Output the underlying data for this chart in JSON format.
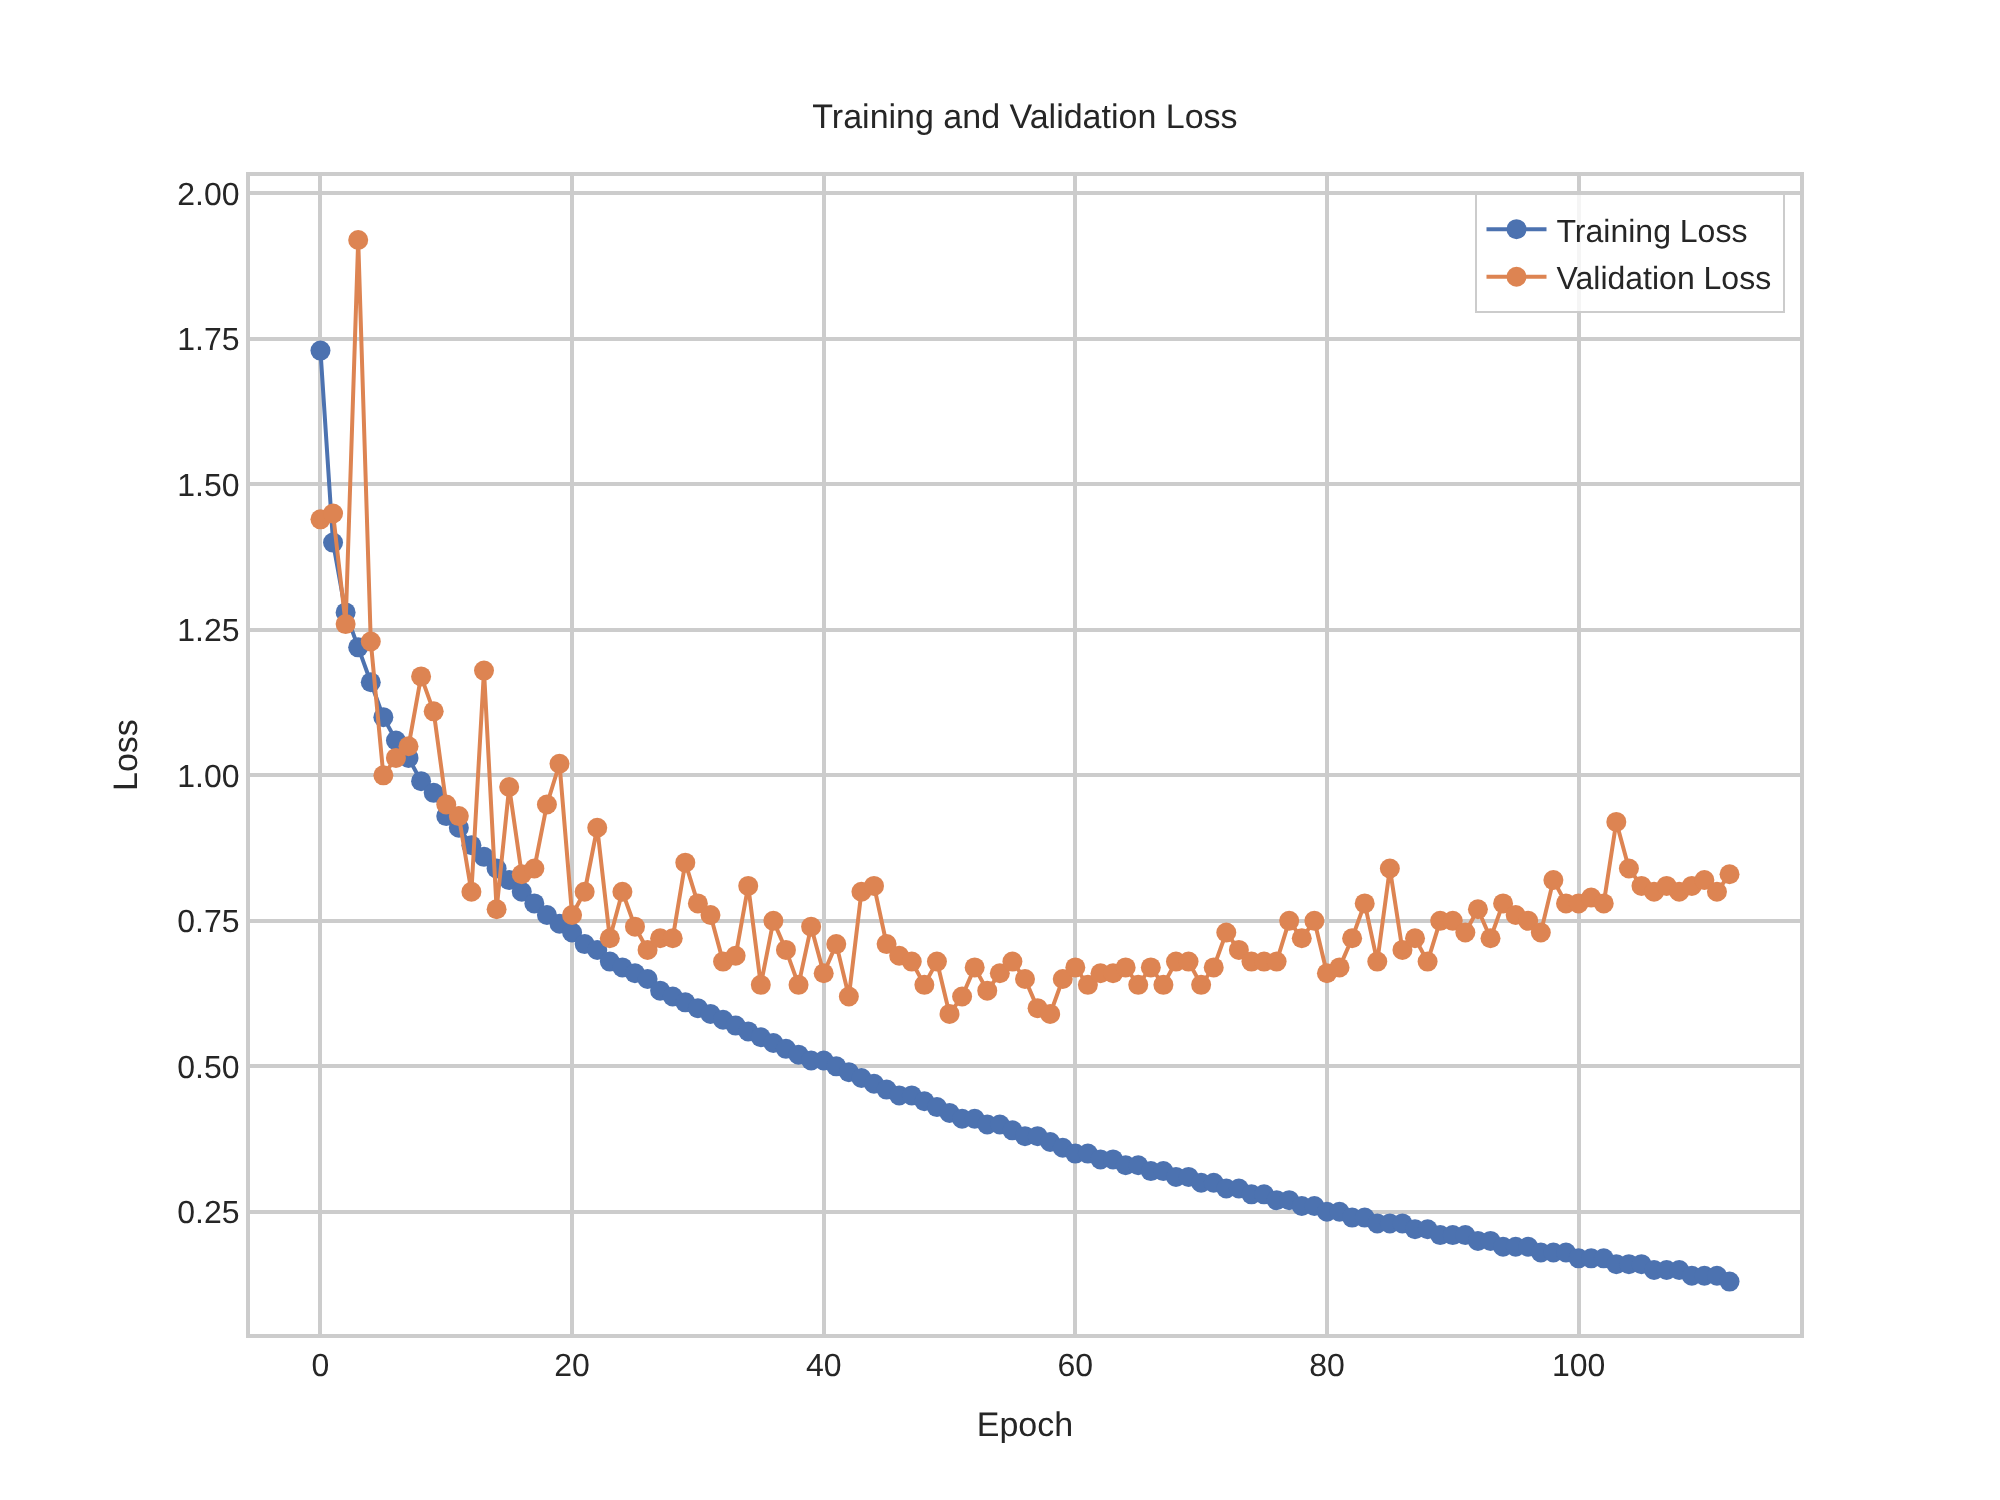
{
  "chart_data": {
    "type": "line",
    "title": "Training and Validation Loss",
    "xlabel": "Epoch",
    "ylabel": "Loss",
    "x": [
      0,
      1,
      2,
      3,
      4,
      5,
      6,
      7,
      8,
      9,
      10,
      11,
      12,
      13,
      14,
      15,
      16,
      17,
      18,
      19,
      20,
      21,
      22,
      23,
      24,
      25,
      26,
      27,
      28,
      29,
      30,
      31,
      32,
      33,
      34,
      35,
      36,
      37,
      38,
      39,
      40,
      41,
      42,
      43,
      44,
      45,
      46,
      47,
      48,
      49,
      50,
      51,
      52,
      53,
      54,
      55,
      56,
      57,
      58,
      59,
      60,
      61,
      62,
      63,
      64,
      65,
      66,
      67,
      68,
      69,
      70,
      71,
      72,
      73,
      74,
      75,
      76,
      77,
      78,
      79,
      80,
      81,
      82,
      83,
      84,
      85,
      86,
      87,
      88,
      89,
      90,
      91,
      92,
      93,
      94,
      95,
      96,
      97,
      98,
      99,
      100,
      101,
      102,
      103,
      104,
      105,
      106,
      107,
      108,
      109,
      110,
      111,
      112
    ],
    "series": [
      {
        "name": "Training Loss",
        "color": "#4c72b0",
        "values": [
          1.73,
          1.4,
          1.28,
          1.22,
          1.16,
          1.1,
          1.06,
          1.03,
          0.99,
          0.97,
          0.93,
          0.91,
          0.88,
          0.86,
          0.84,
          0.82,
          0.8,
          0.78,
          0.76,
          0.745,
          0.73,
          0.71,
          0.7,
          0.68,
          0.67,
          0.66,
          0.65,
          0.63,
          0.62,
          0.61,
          0.6,
          0.59,
          0.58,
          0.57,
          0.56,
          0.55,
          0.54,
          0.53,
          0.52,
          0.51,
          0.51,
          0.5,
          0.49,
          0.48,
          0.47,
          0.46,
          0.45,
          0.45,
          0.44,
          0.43,
          0.42,
          0.41,
          0.41,
          0.4,
          0.4,
          0.39,
          0.38,
          0.38,
          0.37,
          0.36,
          0.35,
          0.35,
          0.34,
          0.34,
          0.33,
          0.33,
          0.32,
          0.32,
          0.31,
          0.31,
          0.3,
          0.3,
          0.29,
          0.29,
          0.28,
          0.28,
          0.27,
          0.27,
          0.26,
          0.26,
          0.25,
          0.25,
          0.24,
          0.24,
          0.23,
          0.23,
          0.23,
          0.22,
          0.22,
          0.21,
          0.21,
          0.21,
          0.2,
          0.2,
          0.19,
          0.19,
          0.19,
          0.18,
          0.18,
          0.18,
          0.17,
          0.17,
          0.17,
          0.16,
          0.16,
          0.16,
          0.15,
          0.15,
          0.15,
          0.14,
          0.14,
          0.14,
          0.13
        ]
      },
      {
        "name": "Validation Loss",
        "color": "#dd8452",
        "values": [
          1.44,
          1.45,
          1.26,
          1.92,
          1.23,
          1.0,
          1.03,
          1.05,
          1.17,
          1.11,
          0.95,
          0.93,
          0.8,
          1.18,
          0.77,
          0.98,
          0.83,
          0.84,
          0.95,
          1.02,
          0.76,
          0.8,
          0.91,
          0.72,
          0.8,
          0.74,
          0.7,
          0.72,
          0.72,
          0.85,
          0.78,
          0.76,
          0.68,
          0.69,
          0.81,
          0.64,
          0.75,
          0.7,
          0.64,
          0.74,
          0.66,
          0.71,
          0.62,
          0.8,
          0.81,
          0.71,
          0.69,
          0.68,
          0.64,
          0.68,
          0.59,
          0.62,
          0.67,
          0.63,
          0.66,
          0.68,
          0.65,
          0.6,
          0.59,
          0.65,
          0.67,
          0.64,
          0.66,
          0.66,
          0.67,
          0.64,
          0.67,
          0.64,
          0.68,
          0.68,
          0.64,
          0.67,
          0.73,
          0.7,
          0.68,
          0.68,
          0.68,
          0.75,
          0.72,
          0.75,
          0.66,
          0.67,
          0.72,
          0.78,
          0.68,
          0.84,
          0.7,
          0.72,
          0.68,
          0.75,
          0.75,
          0.73,
          0.77,
          0.72,
          0.78,
          0.76,
          0.75,
          0.73,
          0.82,
          0.78,
          0.78,
          0.79,
          0.78,
          0.92,
          0.84,
          0.81,
          0.8,
          0.81,
          0.8,
          0.81,
          0.82,
          0.8,
          0.83
        ]
      }
    ],
    "xlim": [
      -5.6,
      117.6
    ],
    "ylim": [
      0.04,
      2.03
    ],
    "xticks": [
      0,
      20,
      40,
      60,
      80,
      100
    ],
    "yticks": [
      0.25,
      {
        "value": 0.5,
        "label": "0.50"
      },
      0.75,
      {
        "value": 1,
        "label": "1.00"
      },
      1.25,
      {
        "value": 1.5,
        "label": "1.50"
      },
      1.75,
      {
        "value": 2,
        "label": "2.00"
      }
    ],
    "grid": true,
    "legend": "top right",
    "marker": "circle",
    "line_style": "solid"
  }
}
